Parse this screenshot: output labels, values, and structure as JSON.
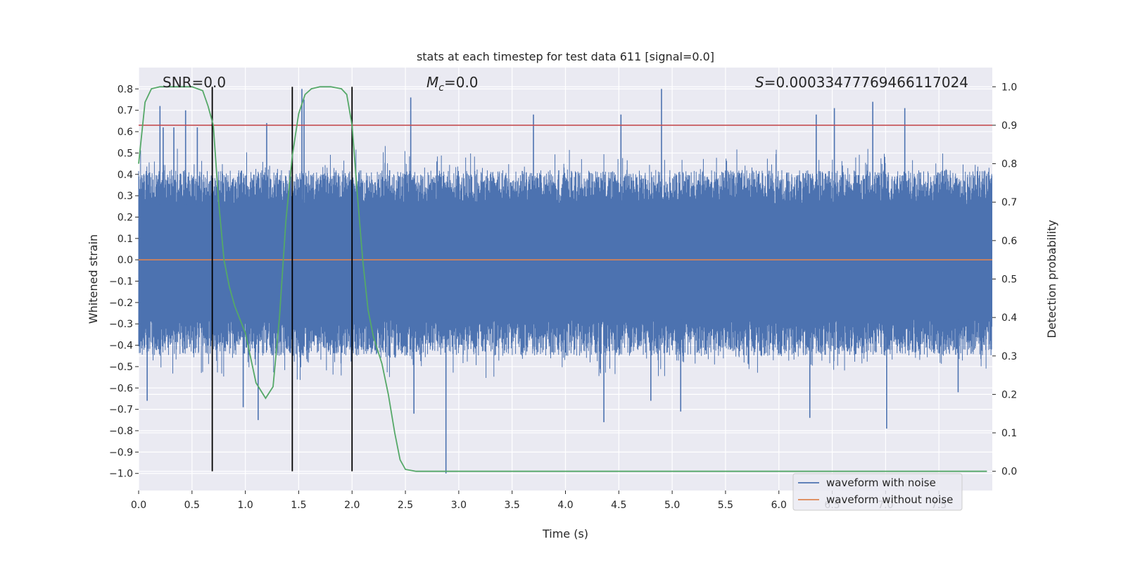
{
  "chart_data": {
    "type": "line",
    "title": "stats at each timestep for test data 611 [signal=0.0]",
    "xlabel": "Time (s)",
    "ylabel": "Whitened strain",
    "y2label": "Detection probability",
    "xlim": [
      0.0,
      8.0
    ],
    "ylim": [
      -1.08,
      0.9
    ],
    "y2lim": [
      -0.05,
      1.05
    ],
    "x_ticks": [
      0.0,
      0.5,
      1.0,
      1.5,
      2.0,
      2.5,
      3.0,
      3.5,
      4.0,
      4.5,
      5.0,
      5.5,
      6.0,
      6.5,
      7.0,
      7.5
    ],
    "x_tick_labels": [
      "0.0",
      "0.5",
      "1.0",
      "1.5",
      "2.0",
      "2.5",
      "3.0",
      "3.5",
      "4.0",
      "4.5",
      "5.0",
      "5.5",
      "6.0",
      "6.5",
      "7.0",
      "7.5"
    ],
    "y_ticks": [
      0.8,
      0.7,
      0.6,
      0.5,
      0.4,
      0.3,
      0.2,
      0.1,
      0.0,
      -0.1,
      -0.2,
      -0.3,
      -0.4,
      -0.5,
      -0.6,
      -0.7,
      -0.8,
      -0.9,
      -1.0
    ],
    "y_tick_labels": [
      "0.8",
      "0.7",
      "0.6",
      "0.5",
      "0.4",
      "0.3",
      "0.2",
      "0.1",
      "0.0",
      "−0.1",
      "−0.2",
      "−0.3",
      "−0.4",
      "−0.5",
      "−0.6",
      "−0.7",
      "−0.8",
      "−0.9",
      "−1.0"
    ],
    "y2_ticks": [
      1.0,
      0.9,
      0.8,
      0.7,
      0.6,
      0.5,
      0.4,
      0.3,
      0.2,
      0.1,
      0.0
    ],
    "y2_tick_labels": [
      "1.0",
      "0.9",
      "0.8",
      "0.7",
      "0.6",
      "0.5",
      "0.4",
      "0.3",
      "0.2",
      "0.1",
      "0.0"
    ],
    "grid": true,
    "legend_position": "lower-right",
    "annotations": {
      "snr": "SNR=0.0",
      "mc_symbol": "M",
      "mc_sub": "c",
      "mc_value": "=0.0",
      "s_symbol": "S",
      "s_value": "=0.00033477769466117024"
    },
    "series": [
      {
        "name": "waveform with noise",
        "color": "#4c72b0",
        "axis": "left",
        "style": "dense-noise",
        "band_upper_typical": 0.42,
        "band_lower_typical": -0.45,
        "max_value": 0.8,
        "min_value": -1.0
      },
      {
        "name": "waveform without noise",
        "color": "#dd8452",
        "axis": "left",
        "x": [
          0.0,
          8.0
        ],
        "values": [
          0.0,
          0.0
        ]
      }
    ],
    "detection_probability": {
      "color": "#55a868",
      "axis": "right",
      "x": [
        0.0,
        0.06,
        0.12,
        0.2,
        0.3,
        0.4,
        0.5,
        0.6,
        0.65,
        0.7,
        0.75,
        0.8,
        0.85,
        0.9,
        1.0,
        1.1,
        1.19,
        1.26,
        1.32,
        1.38,
        1.44,
        1.5,
        1.56,
        1.62,
        1.7,
        1.8,
        1.9,
        1.95,
        2.0,
        2.05,
        2.1,
        2.15,
        2.2,
        2.28,
        2.34,
        2.4,
        2.45,
        2.5,
        2.6,
        3.0,
        4.0,
        5.0,
        6.0,
        7.0,
        7.95
      ],
      "values": [
        0.8,
        0.96,
        0.995,
        1.0,
        1.0,
        1.0,
        1.0,
        0.99,
        0.95,
        0.9,
        0.7,
        0.55,
        0.48,
        0.43,
        0.36,
        0.23,
        0.19,
        0.22,
        0.4,
        0.65,
        0.82,
        0.93,
        0.98,
        0.995,
        1.0,
        1.0,
        0.995,
        0.98,
        0.9,
        0.72,
        0.55,
        0.42,
        0.35,
        0.28,
        0.2,
        0.1,
        0.03,
        0.005,
        0.0,
        0.0,
        0.0,
        0.0,
        0.0,
        0.0,
        0.0
      ]
    },
    "threshold": {
      "color": "#c44e52",
      "axis": "right",
      "value": 0.9
    },
    "detection_markers": {
      "color": "#000000",
      "x": [
        0.69,
        1.44,
        2.0
      ]
    },
    "tall_spikes": [
      {
        "x": 0.2,
        "y": 0.72
      },
      {
        "x": 0.23,
        "y": 0.62
      },
      {
        "x": 0.33,
        "y": 0.62
      },
      {
        "x": 0.44,
        "y": 0.7
      },
      {
        "x": 0.55,
        "y": 0.62
      },
      {
        "x": 1.2,
        "y": 0.64
      },
      {
        "x": 1.53,
        "y": 0.8
      },
      {
        "x": 1.55,
        "y": 0.75
      },
      {
        "x": 2.55,
        "y": 0.76
      },
      {
        "x": 3.7,
        "y": 0.68
      },
      {
        "x": 4.52,
        "y": 0.68
      },
      {
        "x": 4.9,
        "y": 0.8
      },
      {
        "x": 6.35,
        "y": 0.68
      },
      {
        "x": 6.52,
        "y": 0.71
      },
      {
        "x": 6.88,
        "y": 0.74
      },
      {
        "x": 7.18,
        "y": 0.71
      },
      {
        "x": 0.08,
        "y": -0.66
      },
      {
        "x": 0.98,
        "y": -0.69
      },
      {
        "x": 1.12,
        "y": -0.75
      },
      {
        "x": 2.58,
        "y": -0.72
      },
      {
        "x": 2.88,
        "y": -1.0
      },
      {
        "x": 4.36,
        "y": -0.76
      },
      {
        "x": 4.8,
        "y": -0.66
      },
      {
        "x": 5.08,
        "y": -0.71
      },
      {
        "x": 6.29,
        "y": -0.74
      },
      {
        "x": 7.01,
        "y": -0.79
      },
      {
        "x": 7.68,
        "y": -0.62
      }
    ]
  }
}
